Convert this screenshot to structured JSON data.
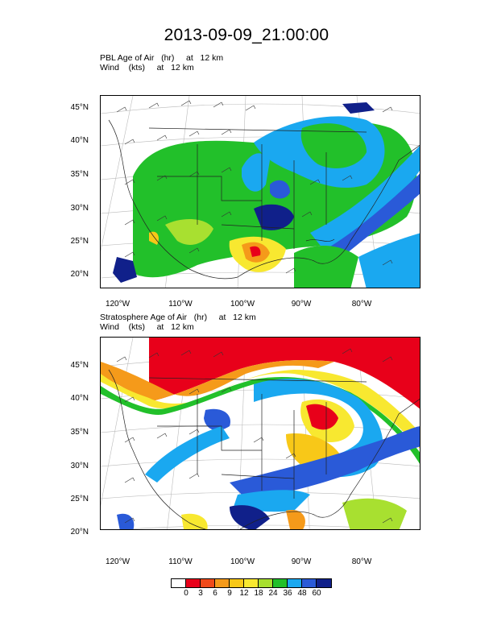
{
  "title": "2013-09-09_21:00:00",
  "panels": [
    {
      "line1": "PBL Age of Air   (hr)     at   12 km",
      "line2": "Wind    (kts)     at   12 km",
      "lat_labels": [
        "45°N",
        "40°N",
        "35°N",
        "30°N",
        "25°N",
        "20°N"
      ],
      "lon_labels": [
        "120°W",
        "110°W",
        "100°W",
        "90°W",
        "80°W"
      ]
    },
    {
      "line1": "Stratosphere Age of Air   (hr)     at   12 km",
      "line2": "Wind    (kts)     at   12 km",
      "lat_labels": [
        "45°N",
        "40°N",
        "35°N",
        "30°N",
        "25°N",
        "20°N"
      ],
      "lon_labels": [
        "120°W",
        "110°W",
        "100°W",
        "90°W",
        "80°W"
      ]
    }
  ],
  "colorbar": {
    "labels": [
      "0",
      "3",
      "6",
      "9",
      "12",
      "18",
      "24",
      "36",
      "48",
      "60"
    ],
    "colors": [
      "#ffffff",
      "#e8001a",
      "#f04a1a",
      "#f59a1a",
      "#f8c818",
      "#f8e830",
      "#a8e030",
      "#22c02a",
      "#1aa8f0",
      "#2a5ad8",
      "#10208a"
    ]
  }
}
